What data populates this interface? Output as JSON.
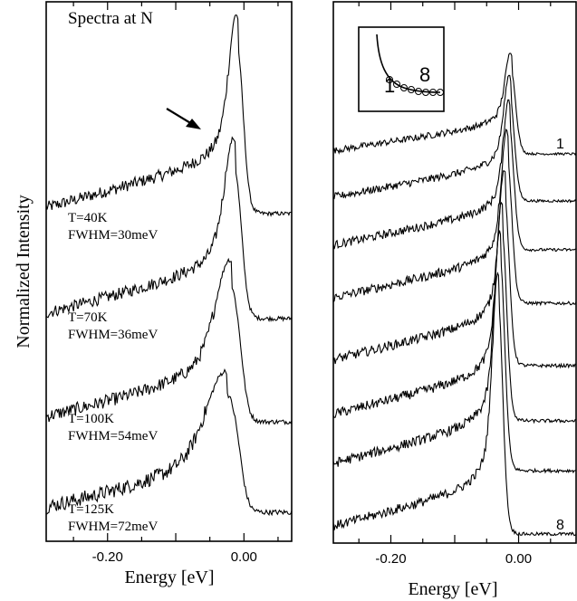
{
  "chart_data": [
    {
      "type": "line",
      "panel": "left",
      "annotation": "Spectra at N",
      "xlabel": "Energy [eV]",
      "ylabel": "Normalized Intensity",
      "xlim": [
        -0.29,
        0.07
      ],
      "x_ticks": [
        -0.2,
        0.0
      ],
      "x_tick_labels": [
        "-0.20",
        "0.00"
      ],
      "series": [
        {
          "name": "T=40K",
          "label_lines": [
            "T=40K",
            "FWHM=30meV"
          ],
          "peak_x": -0.008,
          "fwhm_ev": 0.03
        },
        {
          "name": "T=70K",
          "label_lines": [
            "T=70K",
            "FWHM=36meV"
          ],
          "peak_x": -0.012,
          "fwhm_ev": 0.036
        },
        {
          "name": "T=100K",
          "label_lines": [
            "T=100K",
            "FWHM=54meV"
          ],
          "peak_x": -0.018,
          "fwhm_ev": 0.054
        },
        {
          "name": "T=125K",
          "label_lines": [
            "T=125K",
            "FWHM=72meV"
          ],
          "peak_x": -0.025,
          "fwhm_ev": 0.072
        }
      ]
    },
    {
      "type": "line",
      "panel": "right",
      "xlabel": "Energy [eV]",
      "xlim": [
        -0.29,
        0.09
      ],
      "x_ticks": [
        -0.2,
        0.0
      ],
      "x_tick_labels": [
        "-0.20",
        "0.00"
      ],
      "inset_labels": [
        "1",
        "8"
      ],
      "series": [
        {
          "name": "1",
          "peak_x": -0.01
        },
        {
          "name": "",
          "peak_x": -0.012
        },
        {
          "name": "",
          "peak_x": -0.013
        },
        {
          "name": "",
          "peak_x": -0.016
        },
        {
          "name": "",
          "peak_x": -0.02
        },
        {
          "name": "",
          "peak_x": -0.024
        },
        {
          "name": "",
          "peak_x": -0.027
        },
        {
          "name": "8",
          "peak_x": -0.03
        }
      ]
    }
  ]
}
